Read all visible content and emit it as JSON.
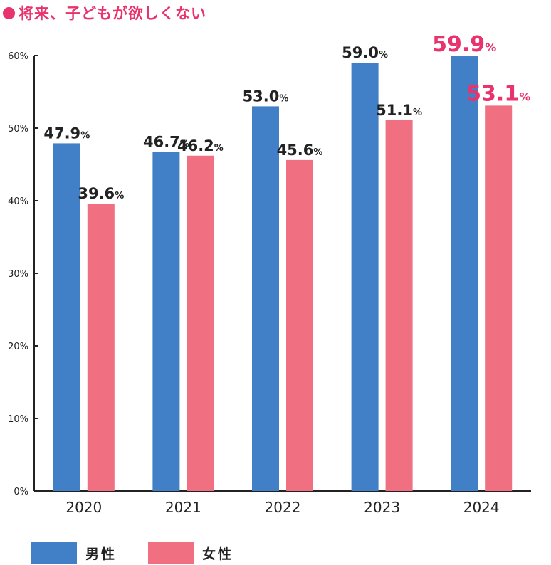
{
  "title": "将来、子どもが欲しくない",
  "colors": {
    "male": "#4180c6",
    "female": "#f07081",
    "accent": "#e8336d",
    "text": "#222222"
  },
  "legend": {
    "male": "男性",
    "female": "女性"
  },
  "chart_data": {
    "type": "bar",
    "categories": [
      "2020",
      "2021",
      "2022",
      "2023",
      "2024"
    ],
    "series": [
      {
        "name": "男性",
        "values": [
          47.9,
          46.7,
          53.0,
          59.0,
          59.9
        ]
      },
      {
        "name": "女性",
        "values": [
          39.6,
          46.2,
          45.6,
          51.1,
          53.1
        ]
      }
    ],
    "data_labels": [
      [
        "47.9%",
        "46.7%",
        "53.0%",
        "59.0%",
        "59.9%"
      ],
      [
        "39.6%",
        "46.2%",
        "45.6%",
        "51.1%",
        "53.1%"
      ]
    ],
    "highlight_last": true,
    "ylim": [
      0,
      60
    ],
    "yticks": [
      "0%",
      "10%",
      "20%",
      "30%",
      "40%",
      "50%",
      "60%"
    ],
    "xlabel": "",
    "ylabel": "",
    "grid": false,
    "legend_position": "bottom-left"
  }
}
